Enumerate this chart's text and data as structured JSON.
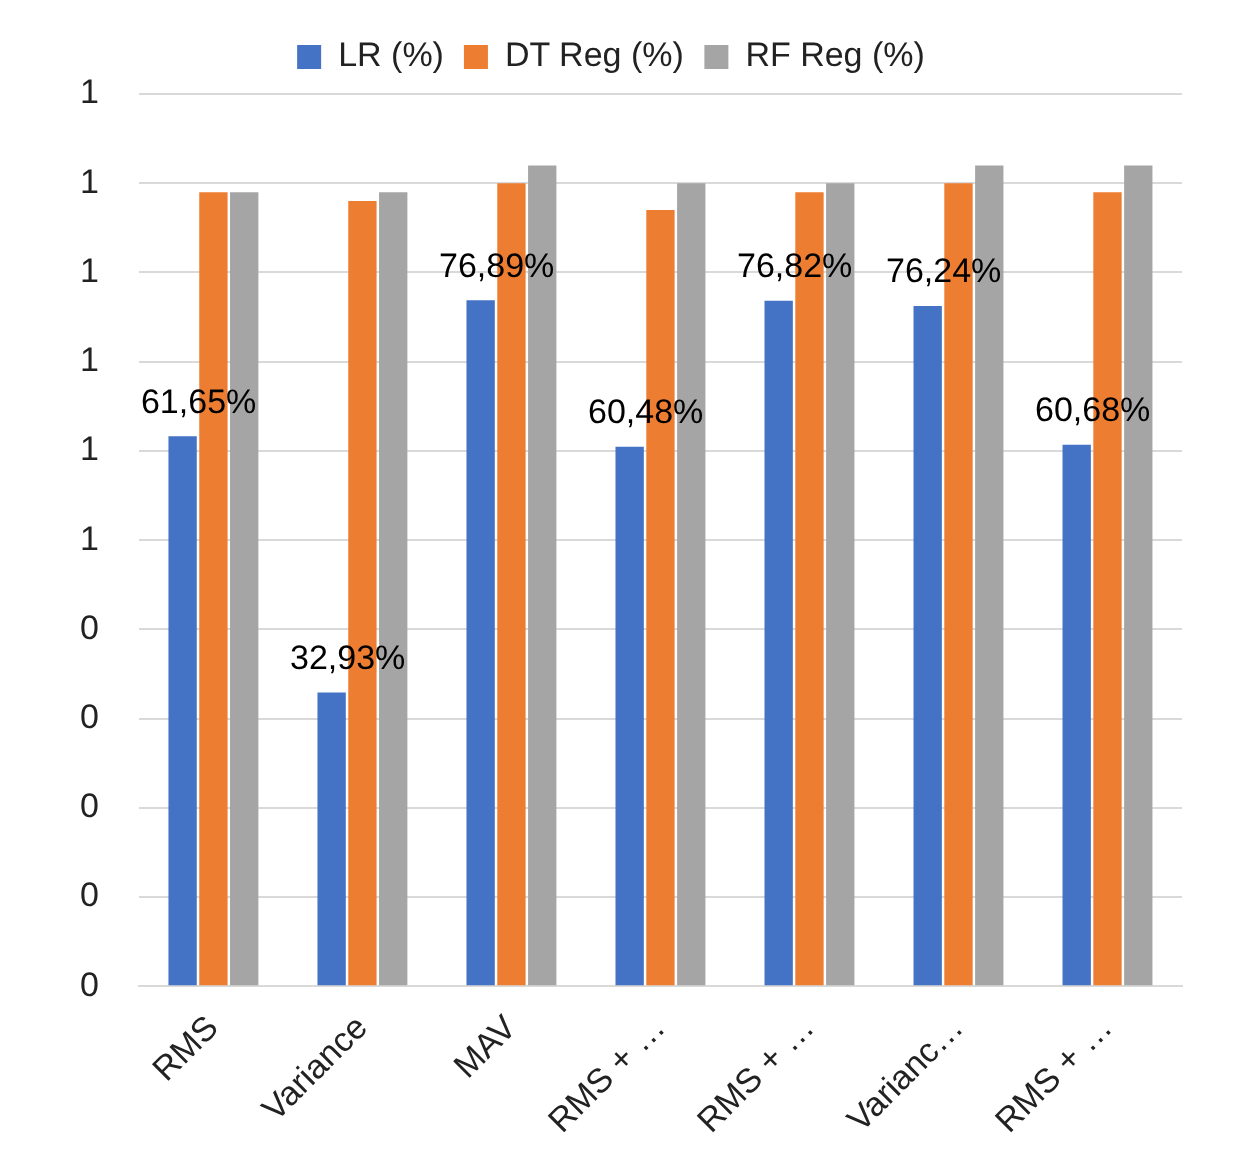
{
  "chart_data": {
    "type": "bar",
    "categories": [
      "RMS",
      "Variance",
      "MAV",
      "RMS + …",
      "RMS + …",
      "Varianc…",
      "RMS + …"
    ],
    "series": [
      {
        "name": "LR (%)",
        "color": "#4472c4",
        "values": [
          0.6165,
          0.3293,
          0.7689,
          0.6048,
          0.7682,
          0.7624,
          0.6068
        ],
        "value_labels": [
          "61,65%",
          "32,93%",
          "76,89%",
          "60,48%",
          "76,82%",
          "76,24%",
          "60,68%"
        ]
      },
      {
        "name": "DT Reg (%)",
        "color": "#ed7d31",
        "values": [
          0.89,
          0.88,
          0.9,
          0.87,
          0.89,
          0.9,
          0.89
        ]
      },
      {
        "name": "RF Reg (%)",
        "color": "#a5a5a5",
        "values": [
          0.89,
          0.89,
          0.92,
          0.9,
          0.9,
          0.92,
          0.92
        ]
      }
    ],
    "ylim": [
      0,
      1
    ],
    "yticks": [
      0,
      {
        "value": 0.1,
        "label": "0"
      },
      {
        "value": 0.2,
        "label": "0"
      },
      {
        "value": 0.3,
        "label": "0"
      },
      {
        "value": 0.4,
        "label": "0"
      },
      {
        "value": 0.5,
        "label": "1"
      },
      {
        "value": 0.6,
        "label": "1"
      },
      {
        "value": 0.7,
        "label": "1"
      },
      {
        "value": 0.8,
        "label": "1"
      },
      {
        "value": 0.9,
        "label": "1"
      },
      1
    ],
    "grid": "y",
    "legend": "top"
  }
}
